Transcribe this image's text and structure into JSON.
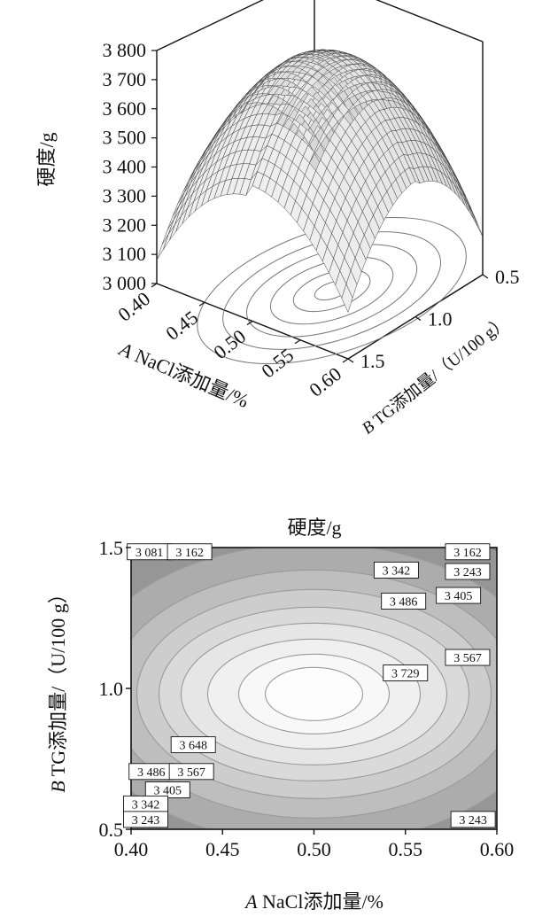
{
  "chart_data": [
    {
      "type": "surface3d",
      "zlabel": "硬度/g",
      "z_ticks": [
        "3 800",
        "3 700",
        "3 600",
        "3 500",
        "3 400",
        "3 300",
        "3 200",
        "3 100",
        "3 000"
      ],
      "zlim": [
        3000,
        3800
      ],
      "xlabel_italic": "A",
      "xlabel": " NaCl添加量/%",
      "x_ticks": [
        "0.40",
        "0.45",
        "0.50",
        "0.55",
        "0.60"
      ],
      "xlim": [
        0.4,
        0.6
      ],
      "ylabel_italic": "B",
      "ylabel": " TG添加量/（U/100 g）",
      "y_ticks": [
        "0.5",
        "1.0",
        "1.5"
      ],
      "ylim": [
        0.5,
        1.5
      ],
      "peak": {
        "x": 0.5,
        "y": 1.0,
        "z": 3770
      },
      "corner_values": [
        {
          "x": 0.4,
          "y": 0.5,
          "z": 3120
        },
        {
          "x": 0.6,
          "y": 0.5,
          "z": 3130
        },
        {
          "x": 0.4,
          "y": 1.5,
          "z": 3080
        },
        {
          "x": 0.6,
          "y": 1.5,
          "z": 3160
        }
      ]
    },
    {
      "type": "contour",
      "title": "硬度/g",
      "xlabel_italic": "A",
      "xlabel": " NaCl添加量/%",
      "ylabel_italic": "B",
      "ylabel": " TG添加量/（U/100 g）",
      "x_ticks": [
        "0.40",
        "0.45",
        "0.50",
        "0.55",
        "0.60"
      ],
      "y_ticks": [
        "0.5",
        "1.0",
        "1.5"
      ],
      "xlim": [
        0.4,
        0.6
      ],
      "ylim": [
        0.5,
        1.5
      ],
      "levels": [
        3081,
        3162,
        3243,
        3342,
        3405,
        3486,
        3567,
        3648,
        3729
      ],
      "contour_labels": [
        {
          "text": "3 081",
          "x": 0.41,
          "y": 1.485
        },
        {
          "text": "3 162",
          "x": 0.432,
          "y": 1.485
        },
        {
          "text": "3 162",
          "x": 0.584,
          "y": 1.485
        },
        {
          "text": "3 342",
          "x": 0.545,
          "y": 1.42
        },
        {
          "text": "3 243",
          "x": 0.584,
          "y": 1.415
        },
        {
          "text": "3 405",
          "x": 0.579,
          "y": 1.33
        },
        {
          "text": "3 486",
          "x": 0.549,
          "y": 1.31
        },
        {
          "text": "3 567",
          "x": 0.584,
          "y": 1.11
        },
        {
          "text": "3 729",
          "x": 0.55,
          "y": 1.055
        },
        {
          "text": "3 648",
          "x": 0.434,
          "y": 0.8
        },
        {
          "text": "3 486",
          "x": 0.411,
          "y": 0.705
        },
        {
          "text": "3 567",
          "x": 0.433,
          "y": 0.705
        },
        {
          "text": "3 405",
          "x": 0.42,
          "y": 0.64
        },
        {
          "text": "3 342",
          "x": 0.408,
          "y": 0.59
        },
        {
          "text": "3 243",
          "x": 0.408,
          "y": 0.535
        },
        {
          "text": "3 243",
          "x": 0.587,
          "y": 0.535
        }
      ]
    }
  ]
}
